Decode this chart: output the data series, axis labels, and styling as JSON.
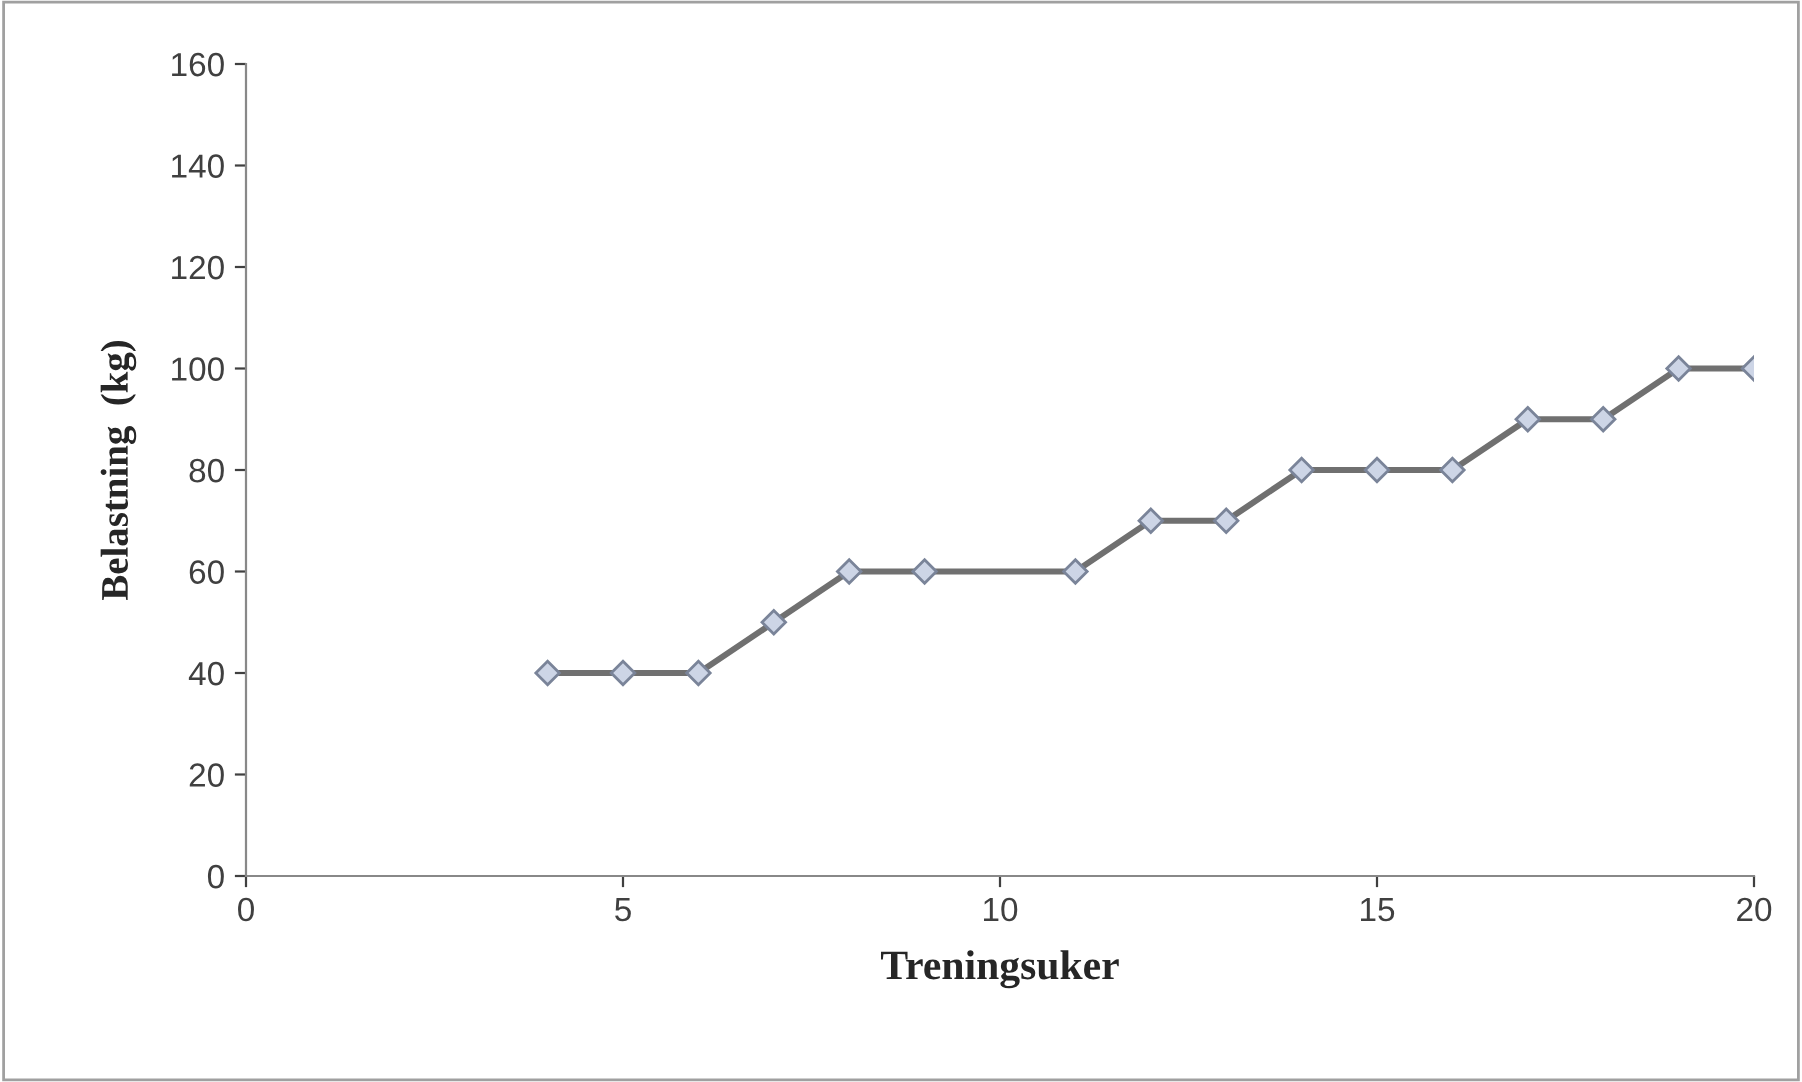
{
  "chart_data": {
    "type": "line",
    "xlabel": "Treningsuker",
    "ylabel": "Belastning  (kg)",
    "x": [
      4,
      5,
      6,
      7,
      8,
      9,
      11,
      12,
      13,
      14,
      15,
      16,
      17,
      18,
      19,
      20
    ],
    "series": [
      {
        "color": "#707070",
        "values": [
          40,
          40,
          40,
          50,
          60,
          60,
          60,
          70,
          70,
          80,
          80,
          80,
          90,
          90,
          100,
          100
        ]
      }
    ],
    "marker": "diamond",
    "line_style": "solid",
    "xlim": [
      0,
      20
    ],
    "xticks": [
      0,
      5,
      10,
      15,
      20
    ],
    "ylim": [
      0,
      160
    ],
    "yticks": [
      0,
      20,
      40,
      60,
      80,
      100,
      120,
      140,
      160
    ],
    "grid": false,
    "legend": false
  }
}
